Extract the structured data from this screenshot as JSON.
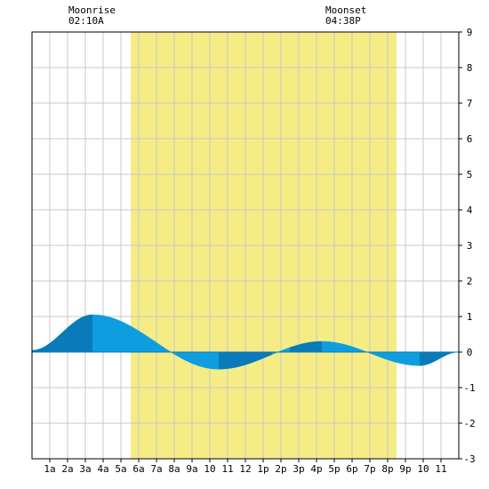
{
  "chart_data": {
    "type": "area",
    "moonrise": {
      "label": "Moonrise",
      "time": "02:10A"
    },
    "moonset": {
      "label": "Moonset",
      "time": "04:38P"
    },
    "x_tick_labels": [
      "1a",
      "2a",
      "3a",
      "4a",
      "5a",
      "6a",
      "7a",
      "8a",
      "9a",
      "10",
      "11",
      "12",
      "1p",
      "2p",
      "3p",
      "4p",
      "5p",
      "6p",
      "7p",
      "8p",
      "9p",
      "10",
      "11"
    ],
    "y_tick_labels": [
      "9",
      "8",
      "7",
      "6",
      "5",
      "4",
      "3",
      "2",
      "1",
      "0",
      "-1",
      "-2",
      "-3"
    ],
    "xlim": [
      0,
      24
    ],
    "ylim": [
      -3,
      9
    ],
    "daylight": [
      5.55,
      20.5
    ],
    "tide_extremes": [
      {
        "x": 0,
        "y": 0.05
      },
      {
        "x": 3.4,
        "y": 1.05
      },
      {
        "x": 10.5,
        "y": -0.48
      },
      {
        "x": 16.3,
        "y": 0.3
      },
      {
        "x": 21.8,
        "y": -0.38
      },
      {
        "x": 24,
        "y": 0.0
      }
    ],
    "grid": true,
    "colors": {
      "daylight": "#f5ec86",
      "tide": "#0e9ee0",
      "tide_dark": "#0a7ab8",
      "grid": "#c8c8c8",
      "axis": "#000000"
    }
  }
}
